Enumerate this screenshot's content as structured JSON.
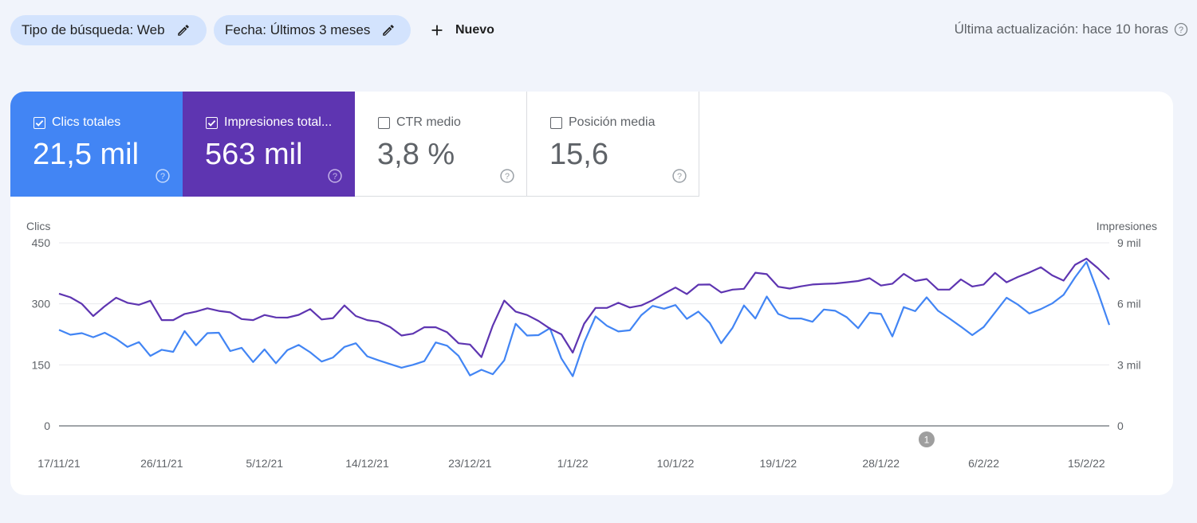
{
  "filters": {
    "search_type": "Tipo de búsqueda: Web",
    "date": "Fecha: Últimos 3 meses",
    "new_label": "Nuevo"
  },
  "last_update": "Última actualización: hace 10 horas",
  "metrics": {
    "clicks": {
      "label": "Clics totales",
      "value": "21,5 mil",
      "checked": true,
      "color": "#4285f4"
    },
    "impressions": {
      "label": "Impresiones total...",
      "value": "563 mil",
      "checked": true,
      "color": "#5e35b1"
    },
    "ctr": {
      "label": "CTR medio",
      "value": "3,8 %",
      "checked": false
    },
    "position": {
      "label": "Posición media",
      "value": "15,6",
      "checked": false
    }
  },
  "chart_data": {
    "type": "line",
    "left_axis_title": "Clics",
    "right_axis_title": "Impresiones",
    "left_ticks": [
      "450",
      "300",
      "150",
      "0"
    ],
    "right_ticks": [
      "9 mil",
      "6 mil",
      "3 mil",
      "0"
    ],
    "left_ylim": [
      0,
      450
    ],
    "right_ylim": [
      0,
      9000
    ],
    "x_tick_labels": [
      "17/11/21",
      "26/11/21",
      "5/12/21",
      "14/12/21",
      "23/12/21",
      "1/1/22",
      "10/1/22",
      "19/1/22",
      "28/1/22",
      "6/2/22",
      "15/2/22"
    ],
    "x_start_date": "2021-11-17",
    "annotation": {
      "label": "1",
      "date": "2022-02-01"
    },
    "grid": true,
    "series": [
      {
        "name": "Clics totales",
        "axis": "left",
        "color": "#4285f4",
        "values": [
          236,
          224,
          228,
          218,
          229,
          214,
          194,
          206,
          172,
          187,
          182,
          233,
          198,
          228,
          229,
          184,
          192,
          157,
          188,
          154,
          186,
          199,
          181,
          158,
          168,
          194,
          203,
          171,
          161,
          152,
          143,
          150,
          159,
          205,
          197,
          172,
          124,
          138,
          127,
          161,
          251,
          222,
          223,
          240,
          166,
          122,
          205,
          269,
          246,
          232,
          235,
          272,
          295,
          288,
          297,
          263,
          281,
          253,
          203,
          241,
          296,
          264,
          318,
          275,
          264,
          264,
          256,
          286,
          283,
          267,
          240,
          278,
          275,
          220,
          292,
          282,
          316,
          283,
          264,
          244,
          223,
          243,
          279,
          315,
          298,
          276,
          287,
          301,
          322,
          365,
          403,
          329,
          248
        ]
      },
      {
        "name": "Impresiones totales",
        "axis": "right",
        "color": "#5e35b1",
        "values": [
          6500,
          6320,
          6000,
          5400,
          5880,
          6300,
          6050,
          5950,
          6150,
          5200,
          5200,
          5500,
          5620,
          5780,
          5650,
          5580,
          5250,
          5200,
          5450,
          5330,
          5320,
          5460,
          5740,
          5230,
          5300,
          5920,
          5400,
          5200,
          5120,
          4860,
          4440,
          4530,
          4850,
          4850,
          4600,
          4060,
          4000,
          3380,
          4940,
          6160,
          5620,
          5450,
          5160,
          4780,
          4500,
          3600,
          5020,
          5800,
          5800,
          6050,
          5820,
          5920,
          6180,
          6500,
          6800,
          6480,
          6940,
          6950,
          6560,
          6700,
          6740,
          7530,
          7460,
          6840,
          6750,
          6860,
          6950,
          6980,
          7000,
          7060,
          7120,
          7260,
          6900,
          6990,
          7470,
          7120,
          7220,
          6700,
          6700,
          7200,
          6850,
          6950,
          7520,
          7060,
          7320,
          7540,
          7800,
          7400,
          7140,
          7920,
          8220,
          7750,
          7200
        ]
      }
    ]
  }
}
